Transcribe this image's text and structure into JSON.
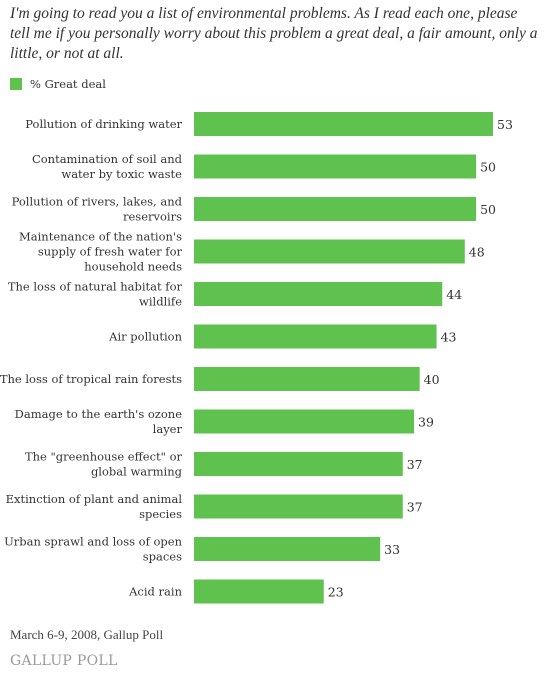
{
  "question": "I'm going to read you a list of environmental problems.  As I read each one, please tell me if you personally worry about this problem a great deal, a fair amount, only a little, or not at all.",
  "legend": {
    "label": "% Great deal",
    "color": "#5fc24e"
  },
  "source": "March 6-9, 2008, Gallup Poll",
  "logo": "GALLUP POLL",
  "chart_data": {
    "type": "bar",
    "orientation": "horizontal",
    "categories": [
      [
        "Pollution of drinking water"
      ],
      [
        "Contamination of soil and",
        "water by toxic waste"
      ],
      [
        "Pollution of rivers, lakes, and",
        "reservoirs"
      ],
      [
        "Maintenance of the nation's",
        "supply of fresh water for",
        "household needs"
      ],
      [
        "The loss of natural habitat for",
        "wildlife"
      ],
      [
        "Air pollution"
      ],
      [
        "The loss of tropical rain forests"
      ],
      [
        "Damage to the earth's ozone",
        "layer"
      ],
      [
        "The \"greenhouse effect\" or",
        "global warming"
      ],
      [
        "Extinction of plant and animal",
        "species"
      ],
      [
        "Urban sprawl and loss of open",
        "spaces"
      ],
      [
        "Acid rain"
      ]
    ],
    "series": [
      {
        "name": "% Great deal",
        "values": [
          53,
          50,
          50,
          48,
          44,
          43,
          40,
          39,
          37,
          37,
          33,
          23
        ]
      }
    ],
    "value_labels": [
      "53",
      "50",
      "50",
      "48",
      "44",
      "43",
      "40",
      "39",
      "37",
      "37",
      "33",
      "23"
    ],
    "xlim": [
      0,
      53
    ],
    "grid": false,
    "legend_position": "top-left"
  }
}
